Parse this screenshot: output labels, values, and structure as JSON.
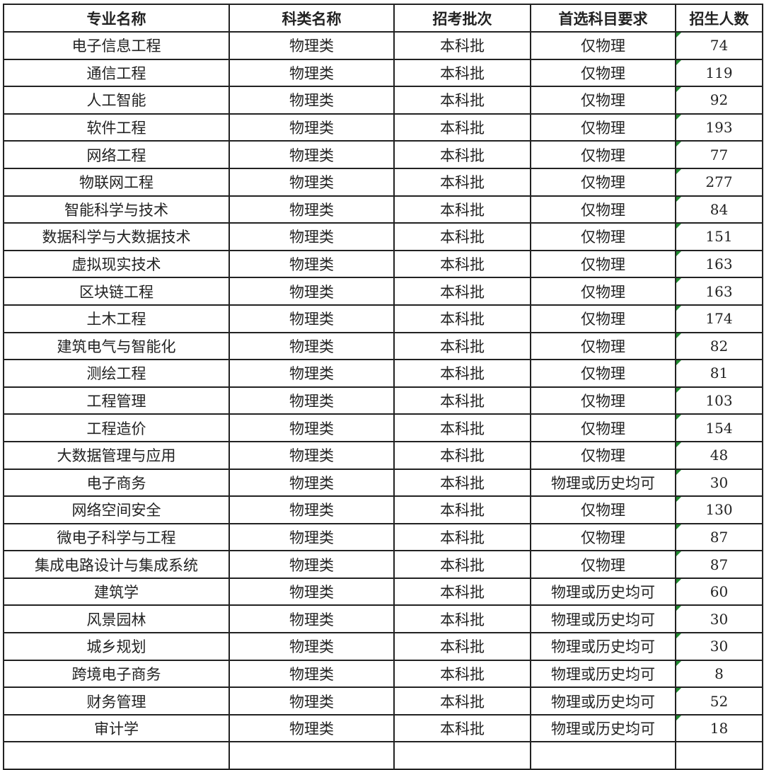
{
  "headers": [
    "专业名称",
    "科类名称",
    "招考批次",
    "首选科目要求",
    "招生人数"
  ],
  "rows": [
    [
      "电子信息工程",
      "物理类",
      "本科批",
      "仅物理",
      "74"
    ],
    [
      "通信工程",
      "物理类",
      "本科批",
      "仅物理",
      "119"
    ],
    [
      "人工智能",
      "物理类",
      "本科批",
      "仅物理",
      "92"
    ],
    [
      "软件工程",
      "物理类",
      "本科批",
      "仅物理",
      "193"
    ],
    [
      "网络工程",
      "物理类",
      "本科批",
      "仅物理",
      "77"
    ],
    [
      "物联网工程",
      "物理类",
      "本科批",
      "仅物理",
      "277"
    ],
    [
      "智能科学与技术",
      "物理类",
      "本科批",
      "仅物理",
      "84"
    ],
    [
      "数据科学与大数据技术",
      "物理类",
      "本科批",
      "仅物理",
      "151"
    ],
    [
      "虚拟现实技术",
      "物理类",
      "本科批",
      "仅物理",
      "163"
    ],
    [
      "区块链工程",
      "物理类",
      "本科批",
      "仅物理",
      "163"
    ],
    [
      "土木工程",
      "物理类",
      "本科批",
      "仅物理",
      "174"
    ],
    [
      "建筑电气与智能化",
      "物理类",
      "本科批",
      "仅物理",
      "82"
    ],
    [
      "测绘工程",
      "物理类",
      "本科批",
      "仅物理",
      "81"
    ],
    [
      "工程管理",
      "物理类",
      "本科批",
      "仅物理",
      "103"
    ],
    [
      "工程造价",
      "物理类",
      "本科批",
      "仅物理",
      "154"
    ],
    [
      "大数据管理与应用",
      "物理类",
      "本科批",
      "仅物理",
      "48"
    ],
    [
      "电子商务",
      "物理类",
      "本科批",
      "物理或历史均可",
      "30"
    ],
    [
      "网络空间安全",
      "物理类",
      "本科批",
      "仅物理",
      "130"
    ],
    [
      "微电子科学与工程",
      "物理类",
      "本科批",
      "仅物理",
      "87"
    ],
    [
      "集成电路设计与集成系统",
      "物理类",
      "本科批",
      "仅物理",
      "87"
    ],
    [
      "建筑学",
      "物理类",
      "本科批",
      "物理或历史均可",
      "60"
    ],
    [
      "风景园林",
      "物理类",
      "本科批",
      "物理或历史均可",
      "30"
    ],
    [
      "城乡规划",
      "物理类",
      "本科批",
      "物理或历史均可",
      "30"
    ],
    [
      "跨境电子商务",
      "物理类",
      "本科批",
      "物理或历史均可",
      "8"
    ],
    [
      "财务管理",
      "物理类",
      "本科批",
      "物理或历史均可",
      "52"
    ],
    [
      "审计学",
      "物理类",
      "本科批",
      "物理或历史均可",
      "18"
    ]
  ],
  "colors": {
    "cell_marker": "#1e8a2e",
    "border": "#222222"
  }
}
